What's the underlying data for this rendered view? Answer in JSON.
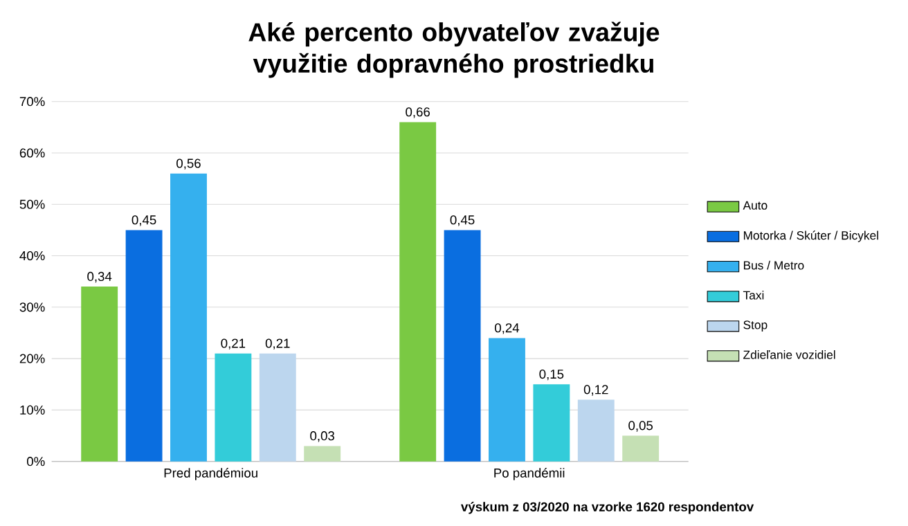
{
  "chart_data": {
    "type": "bar",
    "title": "Aké percento obyvateľov zvažuje využitie dopravného prostriedku",
    "categories": [
      "Pred pandémiou",
      "Po pandémii"
    ],
    "series": [
      {
        "name": "Auto",
        "color": "#7ac943",
        "values": [
          0.34,
          0.66
        ],
        "value_labels": [
          "0,34",
          "0,66"
        ]
      },
      {
        "name": "Motorka / Skúter / Bicykel",
        "color": "#0a6ee0",
        "values": [
          0.45,
          0.45
        ],
        "value_labels": [
          "0,45",
          "0,45"
        ]
      },
      {
        "name": "Bus / Metro",
        "color": "#35b0ee",
        "values": [
          0.56,
          0.24
        ],
        "value_labels": [
          "0,56",
          "0,24"
        ]
      },
      {
        "name": "Taxi",
        "color": "#33ccd9",
        "values": [
          0.21,
          0.15
        ],
        "value_labels": [
          "0,21",
          "0,15"
        ]
      },
      {
        "name": "Stop",
        "color": "#bcd6ee",
        "values": [
          0.21,
          0.12
        ],
        "value_labels": [
          "0,21",
          "0,12"
        ]
      },
      {
        "name": "Zdieľanie vozidiel",
        "color": "#c5e0b4",
        "values": [
          0.03,
          0.05
        ],
        "value_labels": [
          "0,03",
          "0,05"
        ]
      }
    ],
    "ylim": [
      0,
      0.7
    ],
    "yticks": [
      {
        "value": 0,
        "label": "0%"
      },
      {
        "value": 0.1,
        "label": "10%"
      },
      {
        "value": 0.2,
        "label": "20%"
      },
      {
        "value": 0.3,
        "label": "30%"
      },
      {
        "value": 0.4,
        "label": "40%"
      },
      {
        "value": 0.5,
        "label": "50%"
      },
      {
        "value": 0.6,
        "label": "60%"
      },
      {
        "value": 0.7,
        "label": "70%"
      }
    ],
    "grid": "y",
    "legend": "right",
    "annotations": [
      "výskum z 03/2020 na vzorke 1620 respondentov"
    ]
  }
}
